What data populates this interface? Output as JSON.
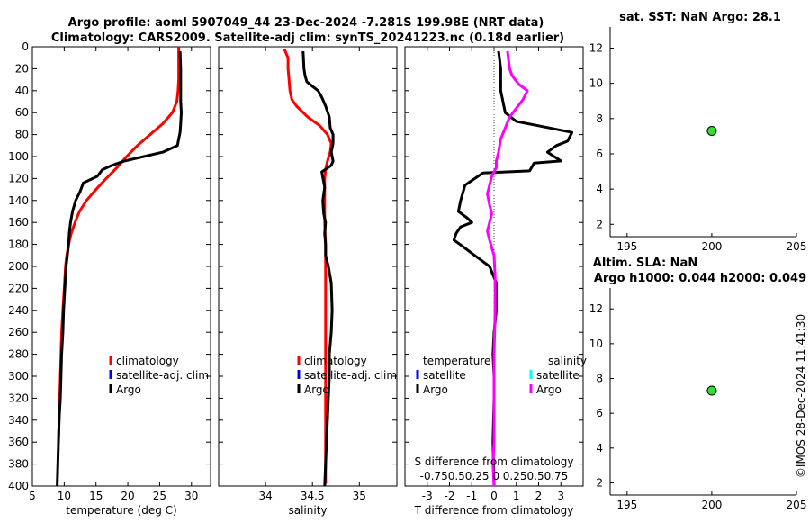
{
  "header": {
    "title_line1": "Argo profile: aoml 5907049_44 23-Dec-2024 -7.281S 199.98E (NRT data)",
    "title_line2": "Climatology: CARS2009. Satellite-adj clim: synTS_20241223.nc (0.18d earlier)"
  },
  "watermark": "©IMOS 28-Dec-2024 11:41:30",
  "colors": {
    "climatology": "#ff0000",
    "satellite": "#0000ff",
    "argo": "#000000",
    "satellite_salinity": "#00ffff",
    "argo_salinity": "#ff00ff",
    "marker": "#33dd33"
  },
  "chart_data": [
    {
      "id": "temperature",
      "type": "line",
      "xlabel": "temperature (deg C)",
      "xlim": [
        5,
        33
      ],
      "xticks": [
        5,
        10,
        15,
        20,
        25,
        30
      ],
      "ylim": [
        0,
        400
      ],
      "yticks": [
        0,
        20,
        40,
        60,
        80,
        100,
        120,
        140,
        160,
        180,
        200,
        220,
        240,
        260,
        280,
        300,
        320,
        340,
        360,
        380,
        400
      ],
      "reversed_y": true,
      "legend": [
        "climatology",
        "satellite-adj. clim",
        "Argo"
      ],
      "series": [
        {
          "name": "climatology",
          "color": "#ff0000",
          "x": [
            28.0,
            28.0,
            28.0,
            28.0,
            27.9,
            27.7,
            27.0,
            25.5,
            23.5,
            21.5,
            19.8,
            18.3,
            16.6,
            15.0,
            13.5,
            12.4,
            11.7,
            11.1,
            10.7,
            10.4,
            10.2,
            10.0,
            9.8,
            9.6,
            9.5,
            9.4,
            9.3,
            9.2,
            9.1
          ],
          "y": [
            0,
            10,
            20,
            30,
            40,
            50,
            60,
            70,
            80,
            90,
            100,
            110,
            120,
            130,
            140,
            150,
            160,
            170,
            180,
            190,
            200,
            220,
            240,
            260,
            280,
            300,
            320,
            340,
            360
          ]
        },
        {
          "name": "Argo",
          "color": "#000000",
          "x": [
            28.2,
            28.3,
            28.3,
            28.3,
            28.4,
            28.3,
            28.2,
            28.0,
            27.8,
            25.5,
            22.5,
            19.5,
            17.5,
            16.0,
            15.2,
            13.0,
            12.5,
            11.8,
            11.3,
            11.0,
            10.8,
            10.7,
            10.5,
            10.3,
            10.2,
            10.1,
            10.0,
            9.9,
            9.8,
            9.6,
            9.5,
            9.4,
            9.2,
            9.1,
            9.0,
            8.9
          ],
          "y": [
            4,
            20,
            40,
            50,
            60,
            70,
            78,
            84,
            90,
            96,
            100,
            104,
            108,
            112,
            118,
            124,
            132,
            140,
            150,
            160,
            170,
            180,
            190,
            200,
            210,
            220,
            230,
            240,
            260,
            280,
            300,
            320,
            340,
            360,
            380,
            400
          ]
        }
      ]
    },
    {
      "id": "salinity",
      "type": "line",
      "xlabel": "salinity",
      "xlim": [
        33.5,
        35.4
      ],
      "xticks": [
        34,
        34.5,
        35
      ],
      "ylim": [
        0,
        400
      ],
      "reversed_y": true,
      "legend": [
        "climatology",
        "satellite-adj. clim",
        "Argo"
      ],
      "series": [
        {
          "name": "climatology",
          "color": "#ff0000",
          "x": [
            34.2,
            34.24,
            34.24,
            34.25,
            34.26,
            34.28,
            34.33,
            34.45,
            34.58,
            34.66,
            34.7,
            34.69,
            34.66,
            34.64,
            34.63,
            34.63,
            34.63,
            34.64,
            34.64,
            34.64,
            34.64,
            34.64,
            34.64,
            34.64
          ],
          "y": [
            2,
            10,
            20,
            30,
            40,
            48,
            54,
            64,
            72,
            80,
            88,
            96,
            104,
            112,
            120,
            140,
            160,
            180,
            200,
            240,
            280,
            320,
            360,
            398
          ]
        },
        {
          "name": "Argo",
          "color": "#000000",
          "x": [
            34.4,
            34.41,
            34.42,
            34.44,
            34.5,
            34.56,
            34.6,
            34.64,
            34.68,
            34.69,
            34.72,
            34.72,
            34.7,
            34.72,
            34.7,
            34.6,
            34.63,
            34.61,
            34.62,
            34.64,
            34.63,
            34.64,
            34.64,
            34.67,
            34.7,
            34.71,
            34.7,
            34.68,
            34.68,
            34.67,
            34.66,
            34.65,
            34.64,
            34.63
          ],
          "y": [
            4,
            20,
            26,
            32,
            36,
            40,
            46,
            54,
            64,
            74,
            80,
            88,
            96,
            104,
            108,
            114,
            128,
            140,
            152,
            160,
            170,
            180,
            190,
            200,
            215,
            240,
            260,
            280,
            300,
            320,
            340,
            360,
            380,
            400
          ]
        }
      ]
    },
    {
      "id": "difference",
      "type": "line",
      "xlabel": "T difference from climatology",
      "xlabel_top": "S difference from climatology",
      "xlim": [
        -4,
        4
      ],
      "xticks": [
        -3,
        -2,
        -1,
        0,
        1,
        2,
        3
      ],
      "xticks2_label": "-0.750.50.25  0  0.250.50.75",
      "ylim": [
        0,
        400
      ],
      "reversed_y": true,
      "legend_title_left": "temperature",
      "legend_title_right": "salinity",
      "legend_left": [
        "satellite",
        "Argo"
      ],
      "legend_right": [
        "satellite",
        "Argo"
      ],
      "series": [
        {
          "name": "T Argo",
          "color": "#000000",
          "x": [
            0.2,
            0.3,
            0.3,
            0.4,
            0.5,
            1.0,
            2.0,
            3.5,
            3.3,
            2.8,
            2.4,
            3.0,
            1.8,
            1.6,
            -0.5,
            -1.3,
            -1.5,
            -1.6,
            -1.2,
            -1.0,
            -1.5,
            -1.7,
            -1.8,
            -1.4,
            -1.0,
            -0.6,
            -0.2,
            0.1,
            0.1,
            0.0,
            -0.05,
            0.0,
            0.0,
            -0.05,
            0.0
          ],
          "y": [
            4,
            20,
            40,
            50,
            60,
            68,
            72,
            78,
            86,
            90,
            96,
            104,
            106,
            113,
            115,
            126,
            140,
            150,
            156,
            160,
            164,
            170,
            176,
            182,
            188,
            194,
            200,
            215,
            240,
            260,
            280,
            300,
            320,
            360,
            400
          ]
        },
        {
          "name": "S Argo",
          "color": "#ff00ff",
          "x": [
            0.6,
            0.7,
            0.8,
            1.1,
            1.5,
            1.3,
            1.0,
            0.7,
            0.5,
            0.3,
            0.2,
            0.1,
            0.1,
            -0.1,
            -0.2,
            -0.3,
            -0.2,
            -0.1,
            -0.2,
            -0.3,
            -0.2,
            0.0,
            0.05,
            0.05,
            0.0,
            0.0,
            0.0,
            -0.05,
            0.0
          ],
          "y": [
            4,
            20,
            26,
            34,
            40,
            48,
            56,
            64,
            74,
            84,
            96,
            104,
            110,
            118,
            126,
            134,
            144,
            152,
            160,
            168,
            176,
            190,
            210,
            240,
            280,
            320,
            360,
            380,
            400
          ]
        }
      ]
    },
    {
      "id": "sst",
      "type": "scatter",
      "title": "sat. SST: NaN Argo: 28.1",
      "xlim": [
        194,
        205
      ],
      "xticks": [
        195,
        200,
        205
      ],
      "ylim": [
        1.3,
        13.2
      ],
      "yticks": [
        2,
        4,
        6,
        8,
        10,
        12
      ],
      "points": [
        {
          "x": 200,
          "y": 7.3
        }
      ]
    },
    {
      "id": "sla",
      "type": "scatter",
      "title": "Altim. SLA: NaN",
      "subtitle": "Argo h1000: 0.044 h2000: 0.049",
      "xlim": [
        194,
        205
      ],
      "xticks": [
        195,
        200,
        205
      ],
      "ylim": [
        1.3,
        13.2
      ],
      "yticks": [
        2,
        4,
        6,
        8,
        10,
        12
      ],
      "points": [
        {
          "x": 200,
          "y": 7.3
        }
      ]
    }
  ]
}
